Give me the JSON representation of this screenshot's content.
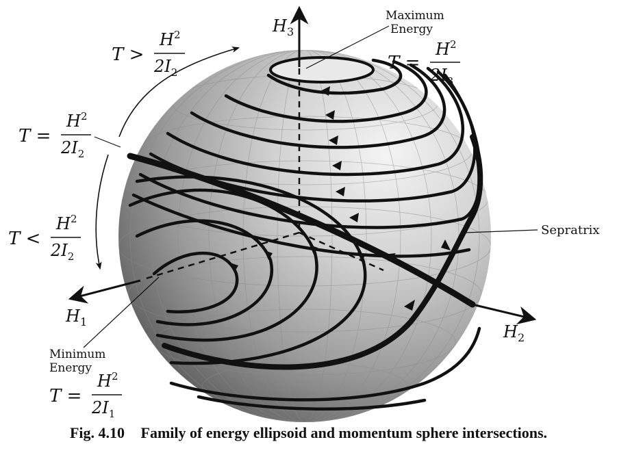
{
  "figure": {
    "caption_number": "Fig. 4.10",
    "caption_text": "Family of energy ellipsoid and momentum sphere intersections."
  },
  "axes": {
    "h1": "H",
    "h1_sub": "1",
    "h2": "H",
    "h2_sub": "2",
    "h3": "H",
    "h3_sub": "3"
  },
  "labels": {
    "maximum_energy": [
      "Maximum",
      "Energy"
    ],
    "minimum_energy": [
      "Minimum",
      "Energy"
    ],
    "sepratrix": "Sepratrix"
  },
  "equations": {
    "t_max": {
      "lhs": "T =",
      "num": "H",
      "sup": "2",
      "den": "2I",
      "sub": "3"
    },
    "t_gt": {
      "lhs": "T >",
      "num": "H",
      "sup": "2",
      "den": "2I",
      "sub": "2"
    },
    "t_eq": {
      "lhs": "T =",
      "num": "H",
      "sup": "2",
      "den": "2I",
      "sub": "2"
    },
    "t_lt": {
      "lhs": "T <",
      "num": "H",
      "sup": "2",
      "den": "2I",
      "sub": "2"
    },
    "t_min": {
      "lhs": "T =",
      "num": "H",
      "sup": "2",
      "den": "2I",
      "sub": "1"
    }
  },
  "colors": {
    "ink": "#111111",
    "sphere_light": "#f2f2f2",
    "sphere_mid": "#bdbdbd",
    "sphere_dark": "#5e5e5e"
  }
}
